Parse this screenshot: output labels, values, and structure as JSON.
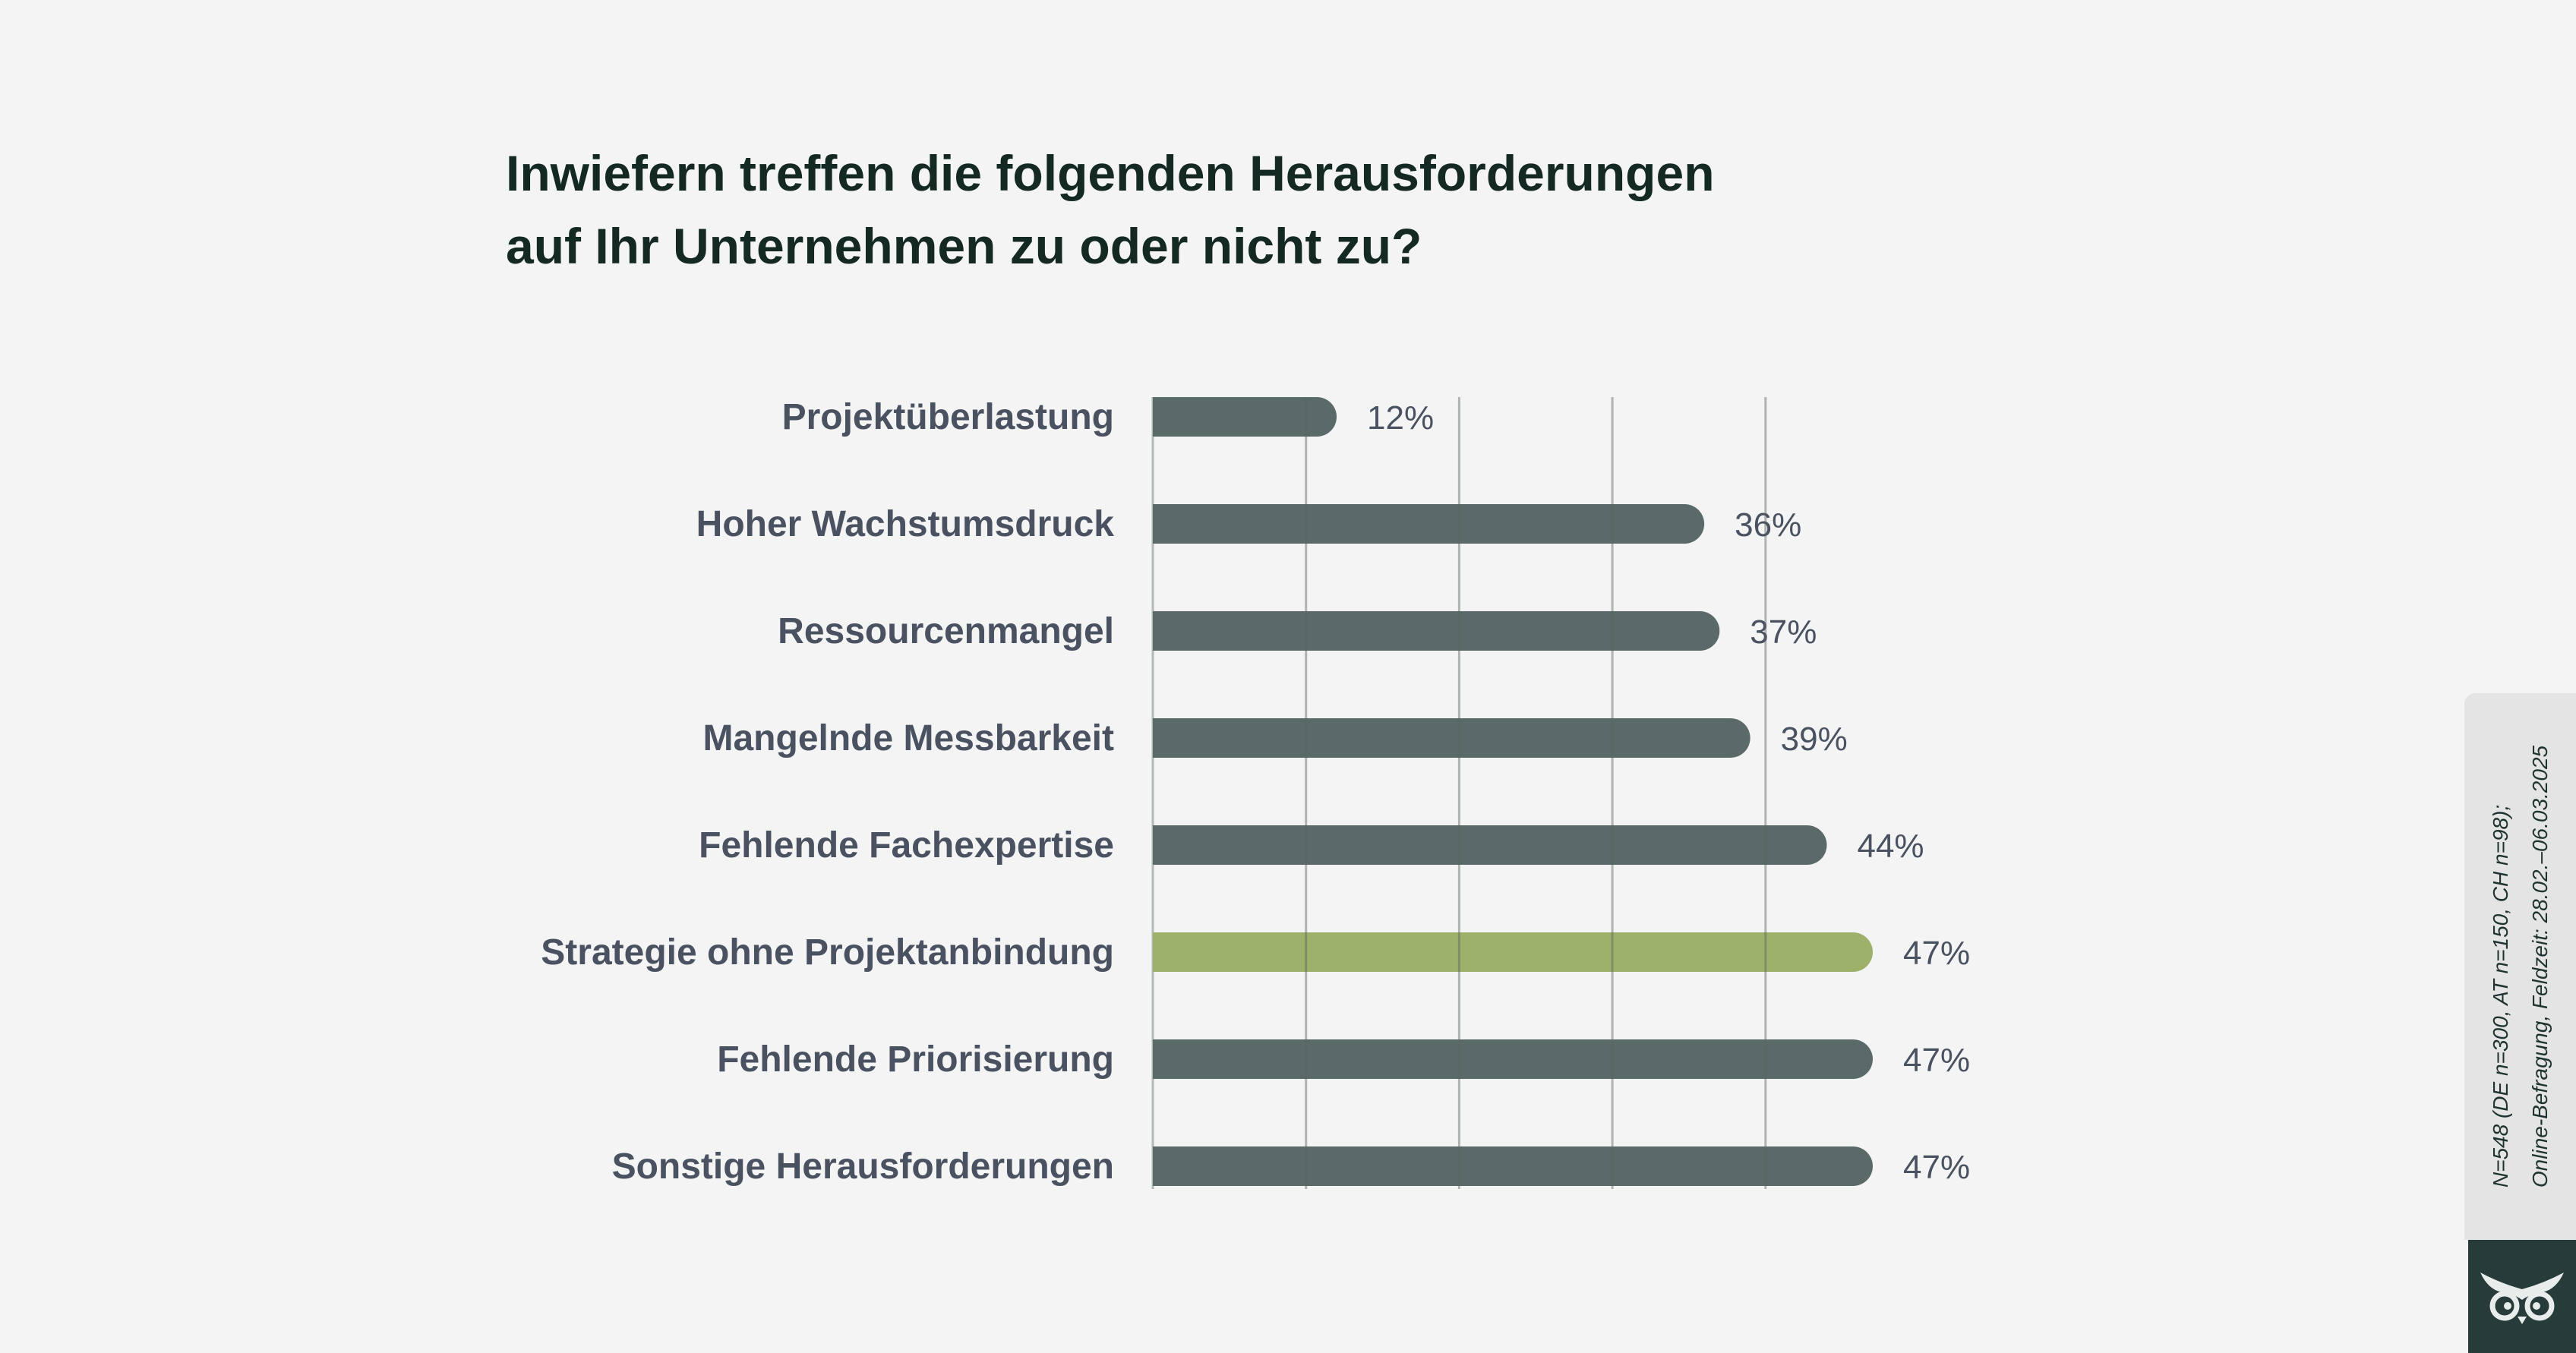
{
  "title_lines": [
    "Inwiefern treffen die folgenden Herausforderungen",
    "auf Ihr Unternehmen zu oder nicht zu?"
  ],
  "chart_data": {
    "type": "bar",
    "orientation": "horizontal",
    "title": "Inwiefern treffen die folgenden Herausforderungen auf Ihr Unternehmen zu oder nicht zu?",
    "categories": [
      "Projektüberlastung",
      "Hoher Wachstumsdruck",
      "Ressourcenmangel",
      "Mangelnde Messbarkeit",
      "Fehlende Fachexpertise",
      "Strategie ohne Projektanbindung",
      "Fehlende Priorisierung",
      "Sonstige Herausforderungen"
    ],
    "values": [
      12,
      36,
      37,
      39,
      44,
      47,
      47,
      47
    ],
    "value_labels": [
      "12%",
      "36%",
      "37%",
      "39%",
      "44%",
      "47%",
      "47%",
      "47%"
    ],
    "highlight_index": 5,
    "bold_indices": [
      5,
      6
    ],
    "xlim": [
      0,
      47
    ],
    "gridlines": [
      10,
      20,
      30,
      40
    ],
    "grid": true,
    "colors": {
      "bar": "#5a6a68",
      "highlight_bar": "#9db16b",
      "highlight_label": "#8a9e45",
      "label": "#4a5262",
      "title": "#142824",
      "grid": "#b4b8b7"
    }
  },
  "footnote": {
    "line1": "N=548 (DE n=300, AT n=150, CH n=98);",
    "line2": "Online-Befragung, Feldzeit: 28.02.–06.03.2025"
  },
  "logo": {
    "icon": "owl-icon"
  }
}
